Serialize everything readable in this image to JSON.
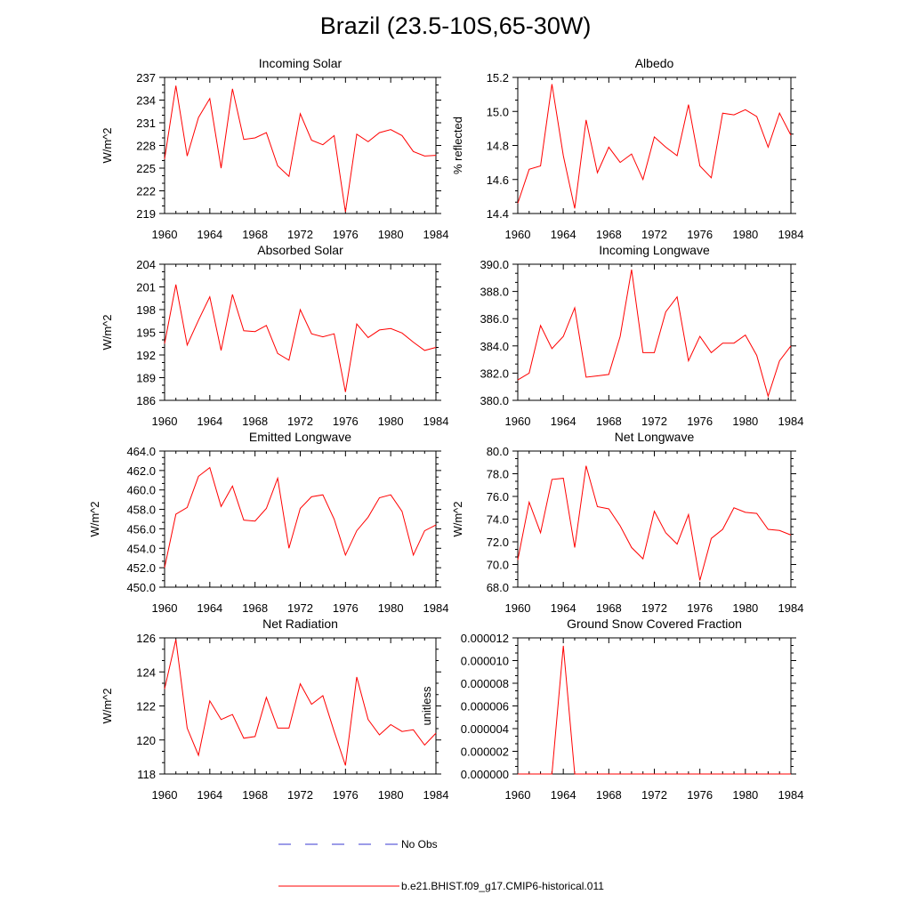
{
  "figure": {
    "title": "Brazil (23.5-10S,65-30W)"
  },
  "legend": [
    {
      "label": "No Obs",
      "color": "#3a3ad0",
      "style": "dashed"
    },
    {
      "label": "b.e21.BHIST.f09_g17.CMIP6-historical.011",
      "color": "#ff0000",
      "style": "solid"
    }
  ],
  "chart_data": [
    {
      "type": "line",
      "title": "Incoming Solar",
      "ylabel": "W/m^2",
      "xlim": [
        1960,
        1984
      ],
      "ylim": [
        219,
        237
      ],
      "xticks": [
        "1960",
        "1964",
        "1968",
        "1972",
        "1976",
        "1980",
        "1984"
      ],
      "yticks": [
        "219",
        "222",
        "225",
        "228",
        "231",
        "234",
        "237"
      ],
      "series": [
        {
          "color": "#ff0000",
          "x": [
            1960,
            1961,
            1962,
            1963,
            1964,
            1965,
            1966,
            1967,
            1968,
            1969,
            1970,
            1971,
            1972,
            1973,
            1974,
            1975,
            1976,
            1977,
            1978,
            1979,
            1980,
            1981,
            1982,
            1983,
            1984
          ],
          "y": [
            226.2,
            235.9,
            226.6,
            231.7,
            234.2,
            225.0,
            235.5,
            228.8,
            229.0,
            229.7,
            225.3,
            223.9,
            232.2,
            228.7,
            228.1,
            229.3,
            219.2,
            229.5,
            228.5,
            229.7,
            230.1,
            229.3,
            227.2,
            226.6,
            226.7
          ]
        }
      ]
    },
    {
      "type": "line",
      "title": "Albedo",
      "ylabel": "% reflected",
      "xlim": [
        1960,
        1984
      ],
      "ylim": [
        14.4,
        15.2
      ],
      "xticks": [
        "1960",
        "1964",
        "1968",
        "1972",
        "1976",
        "1980",
        "1984"
      ],
      "yticks": [
        "14.4",
        "14.6",
        "14.8",
        "15.0",
        "15.2"
      ],
      "series": [
        {
          "color": "#ff0000",
          "x": [
            1960,
            1961,
            1962,
            1963,
            1964,
            1965,
            1966,
            1967,
            1968,
            1969,
            1970,
            1971,
            1972,
            1973,
            1974,
            1975,
            1976,
            1977,
            1978,
            1979,
            1980,
            1981,
            1982,
            1983,
            1984
          ],
          "y": [
            14.46,
            14.66,
            14.68,
            15.16,
            14.74,
            14.43,
            14.95,
            14.64,
            14.79,
            14.7,
            14.75,
            14.6,
            14.85,
            14.79,
            14.74,
            15.04,
            14.68,
            14.61,
            14.99,
            14.98,
            15.01,
            14.97,
            14.79,
            14.99,
            14.86
          ]
        }
      ]
    },
    {
      "type": "line",
      "title": "Absorbed Solar",
      "ylabel": "W/m^2",
      "xlim": [
        1960,
        1984
      ],
      "ylim": [
        186,
        204
      ],
      "xticks": [
        "1960",
        "1964",
        "1968",
        "1972",
        "1976",
        "1980",
        "1984"
      ],
      "yticks": [
        "186",
        "189",
        "192",
        "195",
        "198",
        "201",
        "204"
      ],
      "series": [
        {
          "color": "#ff0000",
          "x": [
            1960,
            1961,
            1962,
            1963,
            1964,
            1965,
            1966,
            1967,
            1968,
            1969,
            1970,
            1971,
            1972,
            1973,
            1974,
            1975,
            1976,
            1977,
            1978,
            1979,
            1980,
            1981,
            1982,
            1983,
            1984
          ],
          "y": [
            193.5,
            201.3,
            193.3,
            196.6,
            199.7,
            192.6,
            200.0,
            195.2,
            195.1,
            195.9,
            192.2,
            191.3,
            198.0,
            194.8,
            194.4,
            194.8,
            187.1,
            196.1,
            194.3,
            195.3,
            195.5,
            194.9,
            193.7,
            192.6,
            193.0
          ]
        }
      ]
    },
    {
      "type": "line",
      "title": "Incoming Longwave",
      "ylabel": "",
      "xlim": [
        1960,
        1984
      ],
      "ylim": [
        380,
        390
      ],
      "xticks": [
        "1960",
        "1964",
        "1968",
        "1972",
        "1976",
        "1980",
        "1984"
      ],
      "yticks": [
        "380.0",
        "382.0",
        "384.0",
        "386.0",
        "388.0",
        "390.0"
      ],
      "series": [
        {
          "color": "#ff0000",
          "x": [
            1960,
            1961,
            1962,
            1963,
            1964,
            1965,
            1966,
            1967,
            1968,
            1969,
            1970,
            1971,
            1972,
            1973,
            1974,
            1975,
            1976,
            1977,
            1978,
            1979,
            1980,
            1981,
            1982,
            1983,
            1984
          ],
          "y": [
            381.5,
            382.0,
            385.5,
            383.8,
            384.7,
            386.8,
            381.7,
            381.8,
            381.9,
            384.7,
            389.6,
            383.5,
            383.5,
            386.5,
            387.6,
            382.9,
            384.7,
            383.5,
            384.2,
            384.2,
            384.8,
            383.3,
            380.3,
            382.9,
            384.0
          ]
        }
      ]
    },
    {
      "type": "line",
      "title": "Emitted Longwave",
      "ylabel": "W/m^2",
      "xlim": [
        1960,
        1984
      ],
      "ylim": [
        450,
        464
      ],
      "xticks": [
        "1960",
        "1964",
        "1968",
        "1972",
        "1976",
        "1980",
        "1984"
      ],
      "yticks": [
        "450.0",
        "452.0",
        "454.0",
        "456.0",
        "458.0",
        "460.0",
        "462.0",
        "464.0"
      ],
      "series": [
        {
          "color": "#ff0000",
          "x": [
            1960,
            1961,
            1962,
            1963,
            1964,
            1965,
            1966,
            1967,
            1968,
            1969,
            1970,
            1971,
            1972,
            1973,
            1974,
            1975,
            1976,
            1977,
            1978,
            1979,
            1980,
            1981,
            1982,
            1983,
            1984
          ],
          "y": [
            452.0,
            457.5,
            458.2,
            461.4,
            462.3,
            458.3,
            460.4,
            456.9,
            456.8,
            458.1,
            461.2,
            454.0,
            458.1,
            459.3,
            459.5,
            457.0,
            453.3,
            455.8,
            457.2,
            459.2,
            459.5,
            457.8,
            453.3,
            455.8,
            456.4
          ]
        }
      ]
    },
    {
      "type": "line",
      "title": "Net Longwave",
      "ylabel": "W/m^2",
      "xlim": [
        1960,
        1984
      ],
      "ylim": [
        68,
        80
      ],
      "xticks": [
        "1960",
        "1964",
        "1968",
        "1972",
        "1976",
        "1980",
        "1984"
      ],
      "yticks": [
        "68.0",
        "70.0",
        "72.0",
        "74.0",
        "76.0",
        "78.0",
        "80.0"
      ],
      "series": [
        {
          "color": "#ff0000",
          "x": [
            1960,
            1961,
            1962,
            1963,
            1964,
            1965,
            1966,
            1967,
            1968,
            1969,
            1970,
            1971,
            1972,
            1973,
            1974,
            1975,
            1976,
            1977,
            1978,
            1979,
            1980,
            1981,
            1982,
            1983,
            1984
          ],
          "y": [
            70.4,
            75.5,
            72.8,
            77.5,
            77.6,
            71.5,
            78.7,
            75.1,
            74.9,
            73.4,
            71.5,
            70.5,
            74.7,
            72.8,
            71.8,
            74.4,
            68.6,
            72.3,
            73.1,
            75.0,
            74.6,
            74.5,
            73.1,
            73.0,
            72.6
          ]
        }
      ]
    },
    {
      "type": "line",
      "title": "Net Radiation",
      "ylabel": "W/m^2",
      "xlim": [
        1960,
        1984
      ],
      "ylim": [
        118,
        126
      ],
      "xticks": [
        "1960",
        "1964",
        "1968",
        "1972",
        "1976",
        "1980",
        "1984"
      ],
      "yticks": [
        "118",
        "120",
        "122",
        "124",
        "126"
      ],
      "series": [
        {
          "color": "#ff0000",
          "x": [
            1960,
            1961,
            1962,
            1963,
            1964,
            1965,
            1966,
            1967,
            1968,
            1969,
            1970,
            1971,
            1972,
            1973,
            1974,
            1975,
            1976,
            1977,
            1978,
            1979,
            1980,
            1981,
            1982,
            1983,
            1984
          ],
          "y": [
            123.0,
            125.9,
            120.7,
            119.1,
            122.3,
            121.2,
            121.5,
            120.1,
            120.2,
            122.5,
            120.7,
            120.7,
            123.3,
            122.1,
            122.6,
            120.5,
            118.5,
            123.7,
            121.2,
            120.3,
            120.9,
            120.5,
            120.6,
            119.7,
            120.4
          ]
        }
      ]
    },
    {
      "type": "line",
      "title": "Ground Snow Covered Fraction",
      "ylabel": "unitless",
      "xlim": [
        1960,
        1984
      ],
      "ylim": [
        0,
        1.2e-05
      ],
      "xticks": [
        "1960",
        "1964",
        "1968",
        "1972",
        "1976",
        "1980",
        "1984"
      ],
      "yticks": [
        "0.000000",
        "0.000002",
        "0.000004",
        "0.000006",
        "0.000008",
        "0.000010",
        "0.000012"
      ],
      "series": [
        {
          "color": "#ff0000",
          "x": [
            1960,
            1961,
            1962,
            1963,
            1964,
            1965,
            1966,
            1967,
            1968,
            1969,
            1970,
            1971,
            1972,
            1973,
            1974,
            1975,
            1976,
            1977,
            1978,
            1979,
            1980,
            1981,
            1982,
            1983,
            1984
          ],
          "y": [
            0,
            0,
            0,
            0,
            1.13e-05,
            0,
            0,
            0,
            0,
            0,
            0,
            0,
            0,
            0,
            0,
            0,
            0,
            0,
            0,
            0,
            0,
            0,
            0,
            0,
            0
          ]
        }
      ]
    }
  ]
}
